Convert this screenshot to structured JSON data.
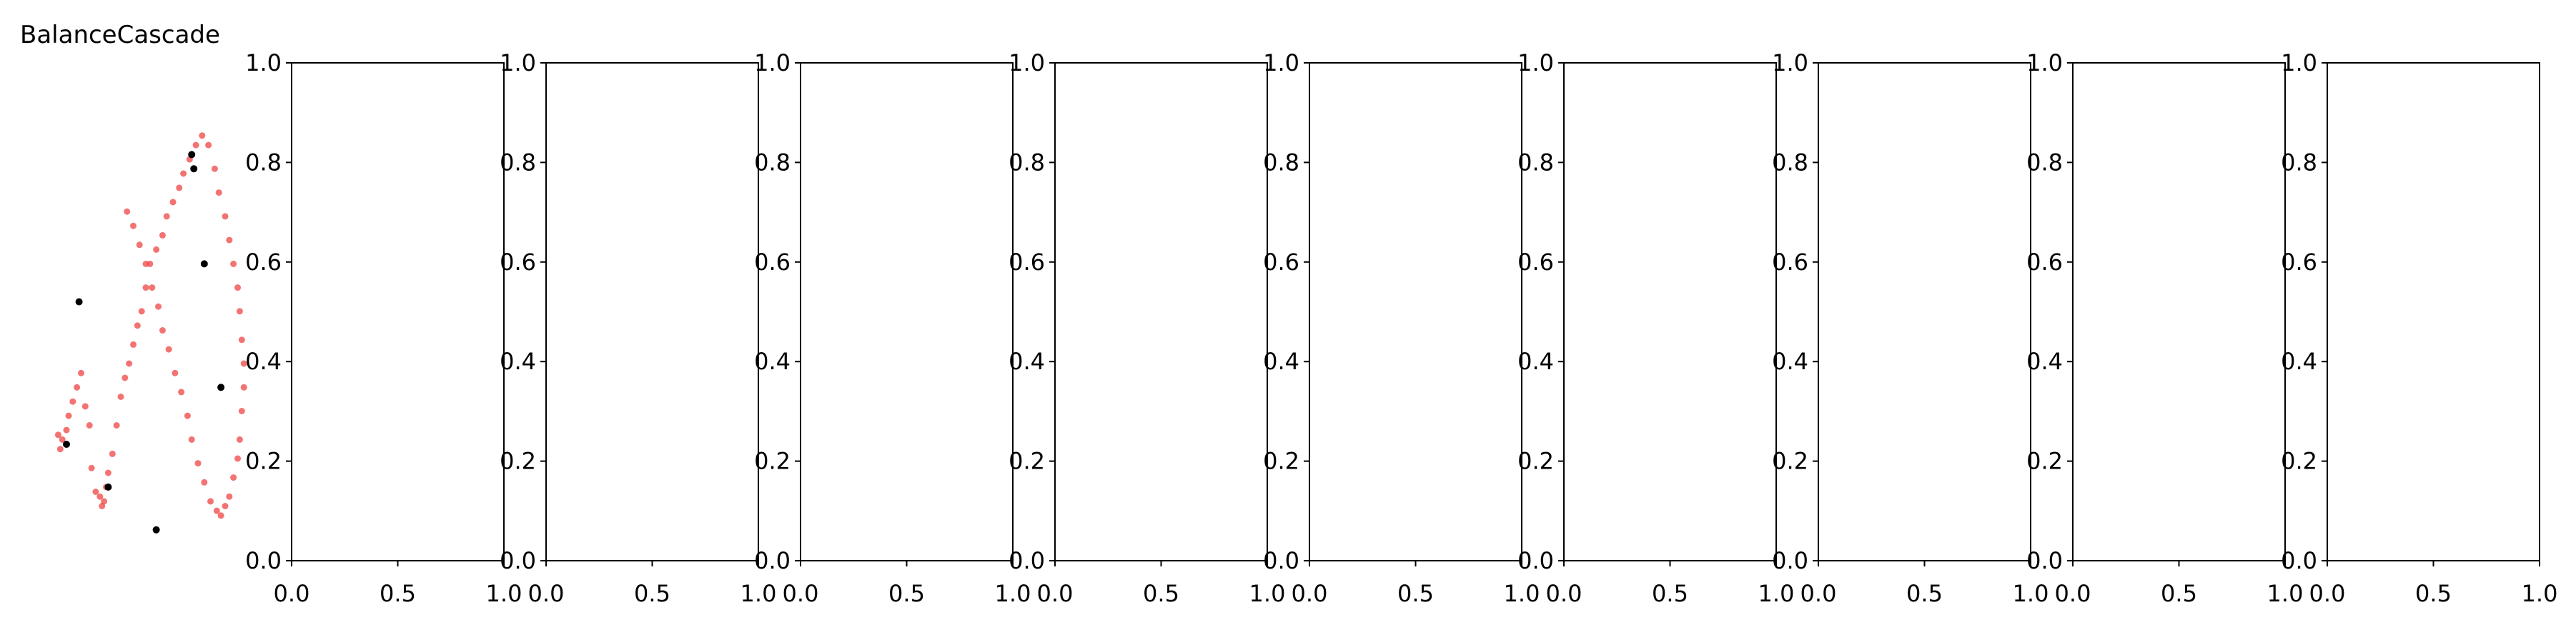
{
  "figure": {
    "title": "BalanceCascade"
  },
  "chart_data": {
    "type": "scatter",
    "title": "BalanceCascade",
    "panels": [
      {
        "panel": 1,
        "axes_visible": false,
        "series": [
          {
            "color": "#ef4444",
            "marker": "dot",
            "points": [
              [
                0.08,
                0.25
              ],
              [
                0.09,
                0.22
              ],
              [
                0.1,
                0.24
              ],
              [
                0.12,
                0.26
              ],
              [
                0.13,
                0.29
              ],
              [
                0.15,
                0.32
              ],
              [
                0.17,
                0.35
              ],
              [
                0.19,
                0.38
              ],
              [
                0.21,
                0.31
              ],
              [
                0.23,
                0.27
              ],
              [
                0.24,
                0.18
              ],
              [
                0.26,
                0.13
              ],
              [
                0.28,
                0.12
              ],
              [
                0.29,
                0.1
              ],
              [
                0.3,
                0.11
              ],
              [
                0.31,
                0.14
              ],
              [
                0.32,
                0.17
              ],
              [
                0.34,
                0.21
              ],
              [
                0.36,
                0.27
              ],
              [
                0.38,
                0.33
              ],
              [
                0.4,
                0.37
              ],
              [
                0.42,
                0.4
              ],
              [
                0.44,
                0.44
              ],
              [
                0.46,
                0.48
              ],
              [
                0.48,
                0.51
              ],
              [
                0.5,
                0.56
              ],
              [
                0.52,
                0.61
              ],
              [
                0.55,
                0.64
              ],
              [
                0.58,
                0.67
              ],
              [
                0.6,
                0.71
              ],
              [
                0.63,
                0.74
              ],
              [
                0.66,
                0.77
              ],
              [
                0.68,
                0.8
              ],
              [
                0.71,
                0.83
              ],
              [
                0.74,
                0.86
              ],
              [
                0.77,
                0.88
              ],
              [
                0.8,
                0.86
              ],
              [
                0.83,
                0.81
              ],
              [
                0.85,
                0.76
              ],
              [
                0.88,
                0.71
              ],
              [
                0.9,
                0.66
              ],
              [
                0.92,
                0.61
              ],
              [
                0.94,
                0.56
              ],
              [
                0.95,
                0.51
              ],
              [
                0.96,
                0.45
              ],
              [
                0.97,
                0.4
              ],
              [
                0.97,
                0.35
              ],
              [
                0.96,
                0.3
              ],
              [
                0.95,
                0.24
              ],
              [
                0.94,
                0.2
              ],
              [
                0.92,
                0.16
              ],
              [
                0.9,
                0.12
              ],
              [
                0.88,
                0.1
              ],
              [
                0.86,
                0.08
              ],
              [
                0.84,
                0.09
              ],
              [
                0.81,
                0.11
              ],
              [
                0.78,
                0.15
              ],
              [
                0.75,
                0.19
              ],
              [
                0.72,
                0.24
              ],
              [
                0.7,
                0.29
              ],
              [
                0.67,
                0.34
              ],
              [
                0.64,
                0.38
              ],
              [
                0.61,
                0.43
              ],
              [
                0.58,
                0.47
              ],
              [
                0.56,
                0.52
              ],
              [
                0.53,
                0.56
              ],
              [
                0.5,
                0.61
              ],
              [
                0.47,
                0.65
              ],
              [
                0.44,
                0.69
              ],
              [
                0.41,
                0.72
              ]
            ]
          },
          {
            "color": "#000000",
            "marker": "dot",
            "points": [
              [
                0.72,
                0.84
              ],
              [
                0.73,
                0.81
              ],
              [
                0.78,
                0.61
              ],
              [
                0.18,
                0.53
              ],
              [
                0.86,
                0.35
              ],
              [
                0.12,
                0.23
              ],
              [
                0.32,
                0.14
              ],
              [
                0.55,
                0.05
              ]
            ]
          }
        ]
      },
      {
        "panel": 2,
        "axes_visible": true,
        "xlim": [
          0,
          1
        ],
        "ylim": [
          0,
          1
        ],
        "series": []
      },
      {
        "panel": 3,
        "axes_visible": true,
        "xlim": [
          0,
          1
        ],
        "ylim": [
          0,
          1
        ],
        "series": []
      },
      {
        "panel": 4,
        "axes_visible": true,
        "xlim": [
          0,
          1
        ],
        "ylim": [
          0,
          1
        ],
        "series": []
      },
      {
        "panel": 5,
        "axes_visible": true,
        "xlim": [
          0,
          1
        ],
        "ylim": [
          0,
          1
        ],
        "series": []
      },
      {
        "panel": 6,
        "axes_visible": true,
        "xlim": [
          0,
          1
        ],
        "ylim": [
          0,
          1
        ],
        "series": []
      },
      {
        "panel": 7,
        "axes_visible": true,
        "xlim": [
          0,
          1
        ],
        "ylim": [
          0,
          1
        ],
        "series": []
      },
      {
        "panel": 8,
        "axes_visible": true,
        "xlim": [
          0,
          1
        ],
        "ylim": [
          0,
          1
        ],
        "series": []
      },
      {
        "panel": 9,
        "axes_visible": true,
        "xlim": [
          0,
          1
        ],
        "ylim": [
          0,
          1
        ],
        "series": []
      },
      {
        "panel": 10,
        "axes_visible": true,
        "xlim": [
          0,
          1
        ],
        "ylim": [
          0,
          1
        ],
        "series": []
      }
    ],
    "x_ticks": [
      "0.0",
      "0.5",
      "1.0"
    ],
    "y_ticks": [
      "0.0",
      "0.2",
      "0.4",
      "0.6",
      "0.8",
      "1.0"
    ],
    "grid": false
  }
}
